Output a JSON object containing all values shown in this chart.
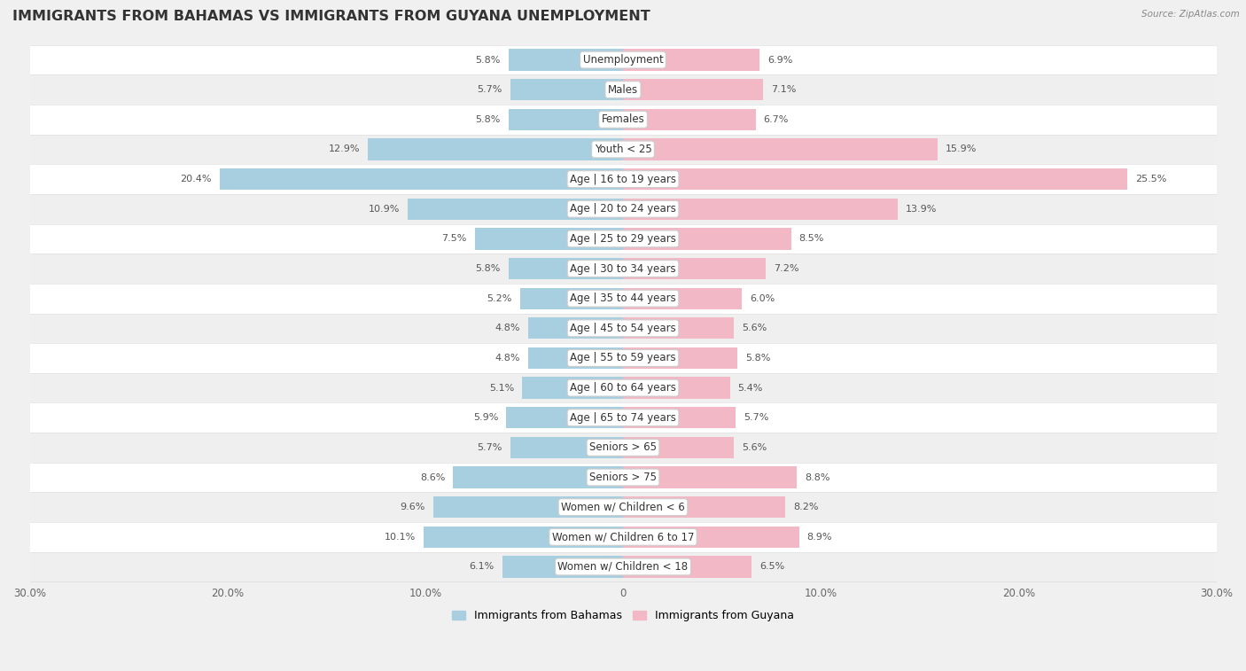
{
  "title": "IMMIGRANTS FROM BAHAMAS VS IMMIGRANTS FROM GUYANA UNEMPLOYMENT",
  "source": "Source: ZipAtlas.com",
  "categories": [
    "Unemployment",
    "Males",
    "Females",
    "Youth < 25",
    "Age | 16 to 19 years",
    "Age | 20 to 24 years",
    "Age | 25 to 29 years",
    "Age | 30 to 34 years",
    "Age | 35 to 44 years",
    "Age | 45 to 54 years",
    "Age | 55 to 59 years",
    "Age | 60 to 64 years",
    "Age | 65 to 74 years",
    "Seniors > 65",
    "Seniors > 75",
    "Women w/ Children < 6",
    "Women w/ Children 6 to 17",
    "Women w/ Children < 18"
  ],
  "bahamas_values": [
    5.8,
    5.7,
    5.8,
    12.9,
    20.4,
    10.9,
    7.5,
    5.8,
    5.2,
    4.8,
    4.8,
    5.1,
    5.9,
    5.7,
    8.6,
    9.6,
    10.1,
    6.1
  ],
  "guyana_values": [
    6.9,
    7.1,
    6.7,
    15.9,
    25.5,
    13.9,
    8.5,
    7.2,
    6.0,
    5.6,
    5.8,
    5.4,
    5.7,
    5.6,
    8.8,
    8.2,
    8.9,
    6.5
  ],
  "bahamas_color": "#a8cfe0",
  "guyana_color": "#f2b8c6",
  "bahamas_label": "Immigrants from Bahamas",
  "guyana_label": "Immigrants from Guyana",
  "xlim": 30.0,
  "row_bg_light": "#ffffff",
  "row_bg_dark": "#efefef",
  "row_border": "#e0e0e0",
  "background_color": "#f0f0f0",
  "title_fontsize": 11.5,
  "label_fontsize": 8.5,
  "value_fontsize": 8.0,
  "axis_fontsize": 8.5,
  "legend_fontsize": 9
}
